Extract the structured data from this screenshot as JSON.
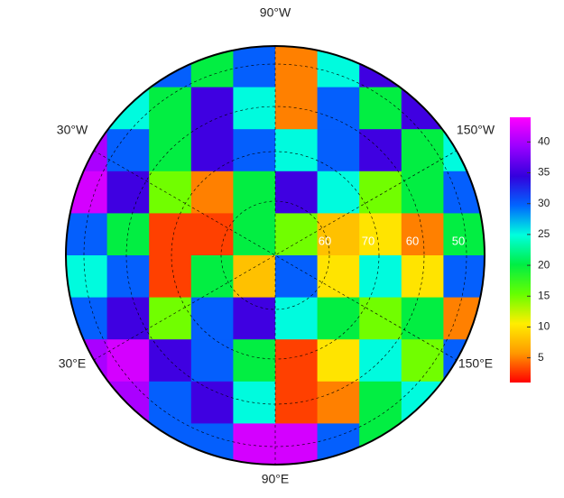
{
  "chart_data": {
    "type": "polar-heatmap",
    "lon_labels": [
      "90°W",
      "30°W",
      "150°W",
      "30°E",
      "150°E",
      "90°E"
    ],
    "lat_labels": [
      "60",
      "70",
      "60",
      "50"
    ],
    "values": [
      [
        35,
        35,
        30,
        20,
        30,
        5,
        25,
        35,
        30,
        30
      ],
      [
        35,
        25,
        20,
        35,
        25,
        5,
        30,
        20,
        35,
        30
      ],
      [
        40,
        30,
        20,
        35,
        30,
        25,
        30,
        35,
        20,
        25
      ],
      [
        42,
        35,
        15,
        5,
        20,
        35,
        25,
        15,
        20,
        30
      ],
      [
        30,
        20,
        3,
        3,
        20,
        15,
        8,
        10,
        5,
        20
      ],
      [
        25,
        30,
        3,
        20,
        8,
        30,
        10,
        25,
        10,
        30
      ],
      [
        30,
        35,
        15,
        30,
        35,
        25,
        20,
        15,
        20,
        5
      ],
      [
        40,
        42,
        35,
        30,
        20,
        3,
        10,
        25,
        15,
        30
      ],
      [
        35,
        40,
        30,
        35,
        25,
        3,
        5,
        20,
        25,
        30
      ],
      [
        35,
        35,
        30,
        30,
        42,
        42,
        30,
        20,
        25,
        30
      ]
    ],
    "colormap": [
      "#ff0000",
      "#ff9900",
      "#ffee00",
      "#66ff00",
      "#00ee44",
      "#00ffdd",
      "#0066ff",
      "#3300dd",
      "#9900ff",
      "#ff00ff"
    ],
    "zlim": [
      1,
      44
    ],
    "zticks": [
      5,
      10,
      15,
      20,
      25,
      30,
      35,
      40
    ]
  }
}
